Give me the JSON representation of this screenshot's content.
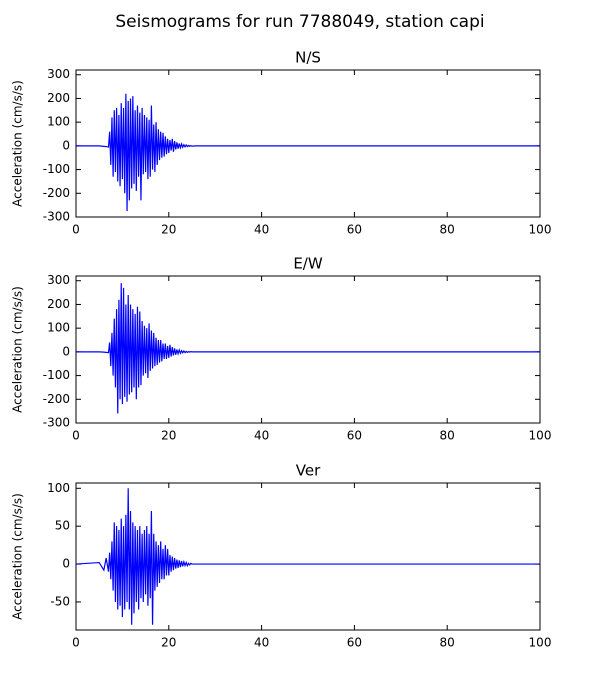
{
  "title": "Seismograms for run 7788049, station capi",
  "chart_data": [
    {
      "type": "line",
      "title": "N/S",
      "ylabel": "Acceleration (cm/s/s)",
      "xlim": [
        0,
        100
      ],
      "xticks": [
        0,
        20,
        40,
        60,
        80,
        100
      ],
      "ylim": [
        -300,
        320
      ],
      "yticks": [
        -300,
        -200,
        -100,
        0,
        100,
        200,
        300
      ],
      "x": [
        0,
        5,
        6,
        6.5,
        7,
        7.25,
        7.5,
        7.75,
        8,
        8.25,
        8.5,
        8.75,
        9,
        9.25,
        9.5,
        9.75,
        10,
        10.25,
        10.5,
        10.75,
        11,
        11.25,
        11.5,
        11.75,
        12,
        12.25,
        12.5,
        12.75,
        13,
        13.25,
        13.5,
        13.75,
        14,
        14.25,
        14.5,
        14.75,
        15,
        15.25,
        15.5,
        15.75,
        16,
        16.25,
        16.5,
        16.75,
        17,
        17.25,
        17.5,
        17.75,
        18,
        18.25,
        18.5,
        18.75,
        19,
        19.25,
        19.5,
        19.75,
        20,
        20.25,
        20.5,
        20.75,
        21,
        21.25,
        21.5,
        21.75,
        22,
        22.25,
        22.5,
        22.75,
        23,
        23.25,
        23.5,
        23.75,
        24,
        24.25,
        24.5,
        24.75,
        25,
        26,
        28,
        30,
        40,
        60,
        80,
        100
      ],
      "series": [
        {
          "color": "#0000ff",
          "values": [
            0,
            0,
            -2,
            -3,
            -5,
            60,
            -80,
            120,
            -130,
            150,
            -110,
            160,
            -150,
            130,
            -170,
            180,
            -140,
            160,
            -200,
            220,
            -275,
            190,
            -230,
            200,
            -180,
            210,
            -160,
            150,
            -190,
            170,
            -130,
            140,
            -230,
            160,
            -120,
            130,
            -110,
            120,
            -140,
            110,
            -130,
            170,
            -100,
            90,
            -110,
            100,
            -80,
            70,
            -60,
            60,
            -50,
            55,
            -45,
            40,
            -35,
            30,
            -30,
            25,
            -20,
            30,
            -25,
            20,
            -15,
            15,
            -12,
            10,
            -8,
            8,
            -6,
            5,
            -4,
            4,
            -3,
            2,
            -2,
            1,
            -1,
            0,
            0,
            0,
            0,
            0,
            0,
            0
          ]
        }
      ]
    },
    {
      "type": "line",
      "title": "E/W",
      "ylabel": "Acceleration (cm/s/s)",
      "xlim": [
        0,
        100
      ],
      "xticks": [
        0,
        20,
        40,
        60,
        80,
        100
      ],
      "ylim": [
        -300,
        320
      ],
      "yticks": [
        -300,
        -200,
        -100,
        0,
        100,
        200,
        300
      ],
      "x": [
        0,
        5,
        6,
        6.5,
        7,
        7.25,
        7.5,
        7.75,
        8,
        8.25,
        8.5,
        8.75,
        9,
        9.25,
        9.5,
        9.75,
        10,
        10.25,
        10.5,
        10.75,
        11,
        11.25,
        11.5,
        11.75,
        12,
        12.25,
        12.5,
        12.75,
        13,
        13.25,
        13.5,
        13.75,
        14,
        14.25,
        14.5,
        14.75,
        15,
        15.25,
        15.5,
        15.75,
        16,
        16.25,
        16.5,
        16.75,
        17,
        17.25,
        17.5,
        17.75,
        18,
        18.25,
        18.5,
        18.75,
        19,
        19.25,
        19.5,
        19.75,
        20,
        20.25,
        20.5,
        20.75,
        21,
        21.25,
        21.5,
        21.75,
        22,
        22.25,
        22.5,
        22.75,
        23,
        23.25,
        23.5,
        23.75,
        24,
        24.25,
        24.5,
        24.75,
        25,
        26,
        28,
        30,
        40,
        60,
        80,
        100
      ],
      "series": [
        {
          "color": "#0000ff",
          "values": [
            0,
            0,
            -1,
            -2,
            -3,
            40,
            -60,
            80,
            -100,
            140,
            -150,
            180,
            -260,
            220,
            -200,
            290,
            -220,
            270,
            -190,
            200,
            -210,
            240,
            -180,
            200,
            -170,
            180,
            -150,
            160,
            -200,
            190,
            -150,
            170,
            -140,
            130,
            -100,
            110,
            -90,
            100,
            -110,
            120,
            -80,
            90,
            -70,
            80,
            -60,
            60,
            -55,
            50,
            -45,
            50,
            -40,
            35,
            -30,
            35,
            -30,
            25,
            -25,
            30,
            -20,
            20,
            -15,
            15,
            -12,
            10,
            -8,
            8,
            -6,
            5,
            -4,
            4,
            -3,
            2,
            -2,
            1,
            -1,
            1,
            0,
            0,
            0,
            0,
            0,
            0,
            0,
            0
          ]
        }
      ]
    },
    {
      "type": "line",
      "title": "Ver",
      "ylabel": "Acceleration (cm/s/s)",
      "xlim": [
        0,
        100
      ],
      "xticks": [
        0,
        20,
        40,
        60,
        80,
        100
      ],
      "ylim": [
        -87,
        107
      ],
      "yticks": [
        -50,
        0,
        50,
        100
      ],
      "x": [
        0,
        5,
        6,
        6.5,
        7,
        7.25,
        7.5,
        7.75,
        8,
        8.25,
        8.5,
        8.75,
        9,
        9.25,
        9.5,
        9.75,
        10,
        10.25,
        10.5,
        10.75,
        11,
        11.25,
        11.5,
        11.75,
        12,
        12.25,
        12.5,
        12.75,
        13,
        13.25,
        13.5,
        13.75,
        14,
        14.25,
        14.5,
        14.75,
        15,
        15.25,
        15.5,
        15.75,
        16,
        16.25,
        16.5,
        16.75,
        17,
        17.25,
        17.5,
        17.75,
        18,
        18.25,
        18.5,
        18.75,
        19,
        19.25,
        19.5,
        19.75,
        20,
        20.25,
        20.5,
        20.75,
        21,
        21.25,
        21.5,
        21.75,
        22,
        22.25,
        22.5,
        22.75,
        23,
        23.25,
        23.5,
        23.75,
        24,
        24.25,
        24.5,
        24.75,
        25,
        26,
        28,
        30,
        40,
        60,
        80,
        100
      ],
      "series": [
        {
          "color": "#0000ff",
          "values": [
            0,
            2,
            -8,
            8,
            -10,
            15,
            -20,
            30,
            -35,
            55,
            -50,
            50,
            -60,
            45,
            -55,
            60,
            -70,
            50,
            -60,
            65,
            -50,
            100,
            -60,
            70,
            -80,
            55,
            -65,
            50,
            -50,
            45,
            -60,
            50,
            -45,
            40,
            -50,
            45,
            -40,
            50,
            -55,
            40,
            -45,
            70,
            -80,
            40,
            -35,
            30,
            -30,
            25,
            -25,
            30,
            -20,
            20,
            -20,
            25,
            -15,
            20,
            -15,
            12,
            -10,
            10,
            -8,
            8,
            -6,
            6,
            -5,
            5,
            -4,
            4,
            -3,
            3,
            -2,
            2,
            -2,
            1,
            -1,
            1,
            0,
            0,
            0,
            0,
            0,
            0,
            0,
            0
          ]
        }
      ]
    }
  ]
}
